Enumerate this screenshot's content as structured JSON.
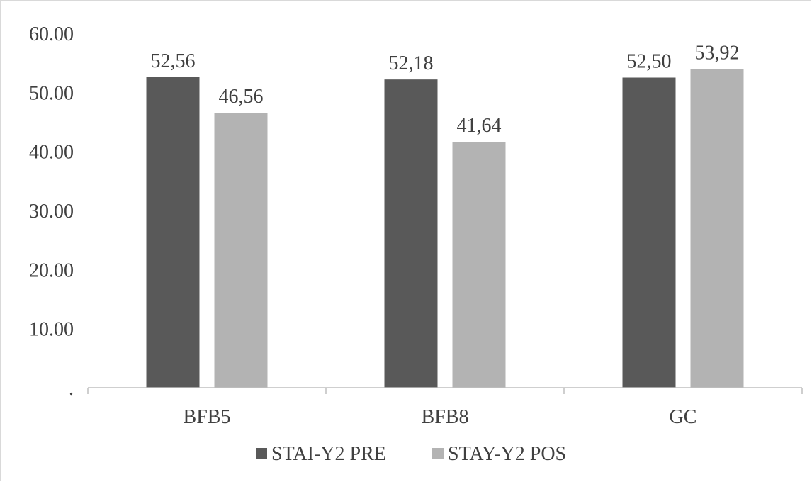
{
  "chart_data": {
    "type": "bar",
    "categories": [
      "BFB5",
      "BFB8",
      "GC"
    ],
    "series": [
      {
        "name": "STAI-Y2 PRE",
        "values": [
          52.56,
          52.18,
          52.5
        ],
        "labels": [
          "52,56",
          "52,18",
          "52,50"
        ],
        "color": "#595959"
      },
      {
        "name": "STAY-Y2 POS",
        "values": [
          46.56,
          41.64,
          53.92
        ],
        "labels": [
          "46,56",
          "41,64",
          "53,92"
        ],
        "color": "#b3b3b3"
      }
    ],
    "yticks": [
      {
        "value": 0,
        "label": "."
      },
      {
        "value": 10,
        "label": "10.00"
      },
      {
        "value": 20,
        "label": "20.00"
      },
      {
        "value": 30,
        "label": "30.00"
      },
      {
        "value": 40,
        "label": "40.00"
      },
      {
        "value": 50,
        "label": "50.00"
      },
      {
        "value": 60,
        "label": "60.00"
      }
    ],
    "ylim": [
      0,
      60
    ],
    "grid": false,
    "legend": "bottom-center",
    "title": "",
    "xlabel": "",
    "ylabel": "",
    "axis_color": "#bfbfbf"
  }
}
